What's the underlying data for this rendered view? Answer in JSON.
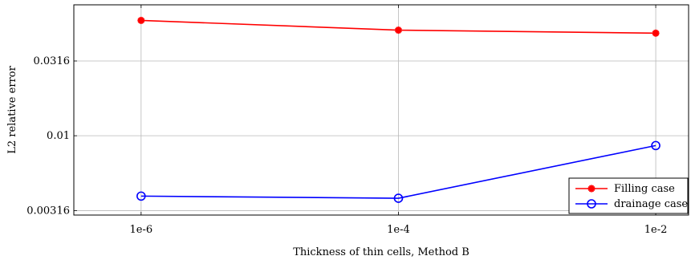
{
  "chart_data": {
    "type": "line",
    "title": "",
    "xlabel": "Thickness of thin cells, Method B",
    "ylabel": "L2 relative error",
    "x_scale": "log",
    "y_scale": "log",
    "categories": [
      "1e-6",
      "1e-4",
      "1e-2"
    ],
    "x_values": [
      1e-06,
      0.0001,
      0.01
    ],
    "xlim": [
      3e-07,
      0.018
    ],
    "ylim": [
      0.00295,
      0.075
    ],
    "yticks": [
      0.00316,
      0.01,
      0.0316
    ],
    "ytick_labels": [
      "0.00316",
      "0.01",
      "0.0316"
    ],
    "grid": true,
    "legend_position": "bottom-right",
    "series": [
      {
        "name": "Filling case",
        "values": [
          0.059,
          0.0508,
          0.0485
        ],
        "color": "#ff0000",
        "marker": "asterisk"
      },
      {
        "name": "drainage case",
        "values": [
          0.00395,
          0.00382,
          0.0086
        ],
        "color": "#0000ff",
        "marker": "circle"
      }
    ]
  }
}
